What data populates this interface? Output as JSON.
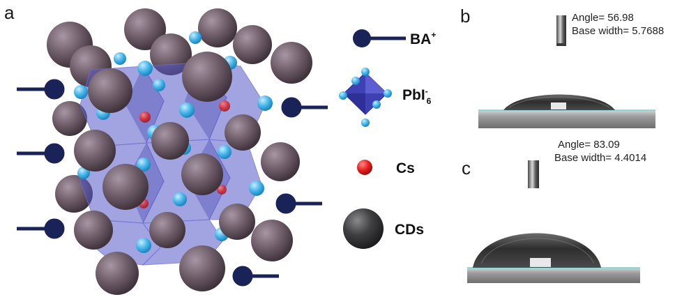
{
  "panels": {
    "a": "a",
    "b": "b",
    "c": "c"
  },
  "legend": {
    "ba_label": "BA",
    "ba_sup": "+",
    "pbi_label": "PbI",
    "pbi_sup": "-",
    "pbi_sub": "6",
    "cs_label": "Cs",
    "cds_label": "CDs"
  },
  "measurement_b": {
    "angle_text": "Angle= 56.98",
    "base_text": "Base width= 5.7688"
  },
  "measurement_c": {
    "angle_text": "Angle= 83.09",
    "base_text": "Base width= 4.4014"
  },
  "colors": {
    "cd_sphere": "#6b5a66",
    "cd_sphere_dark": "#3a3a3c",
    "pb_node": "#4ab8ea",
    "octahedron": "#5a5cc8",
    "cs_atom": "#e41c1c",
    "ba_chain": "#1a2358",
    "substrate": "#9a9a9a"
  }
}
